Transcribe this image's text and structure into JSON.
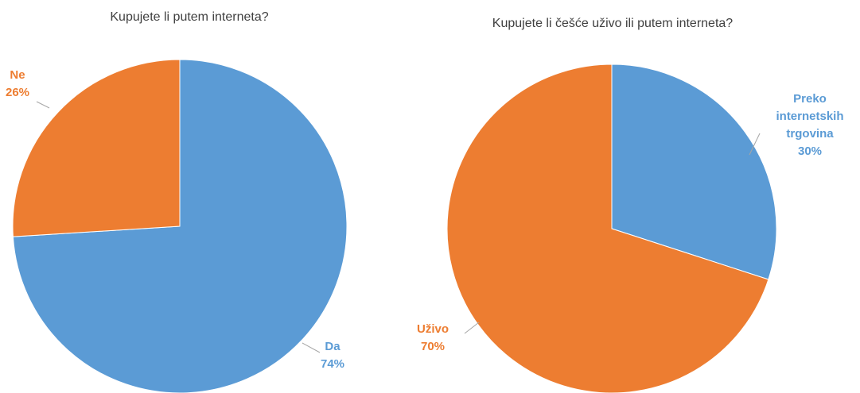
{
  "chart_data": [
    {
      "type": "pie",
      "title": "Kupujete li putem interneta?",
      "categories": [
        "Da",
        "Ne"
      ],
      "values": [
        74,
        26
      ],
      "value_labels": [
        "74%",
        "26%"
      ],
      "colors": [
        "#5b9bd5",
        "#ed7d31"
      ]
    },
    {
      "type": "pie",
      "title": "Kupujete li češće uživo ili putem interneta?",
      "categories": [
        "Preko internetskih trgovina",
        "Uživo"
      ],
      "values": [
        30,
        70
      ],
      "value_labels": [
        "30%",
        "70%"
      ],
      "colors": [
        "#5b9bd5",
        "#ed7d31"
      ]
    }
  ]
}
